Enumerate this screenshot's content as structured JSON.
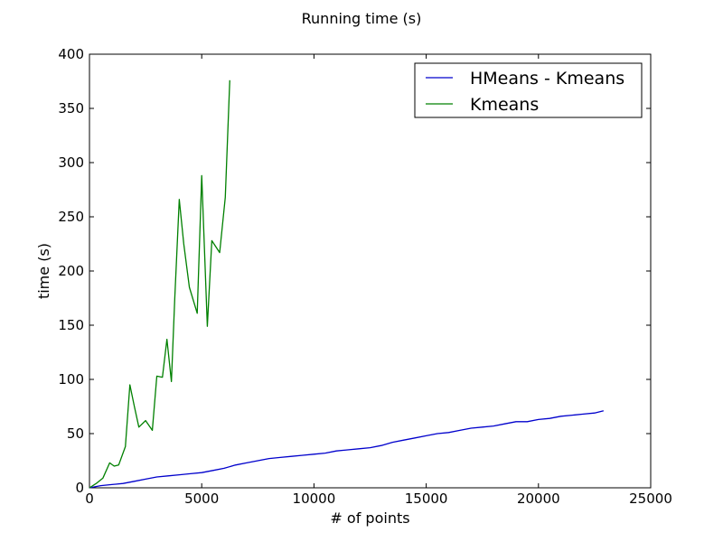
{
  "chart_data": {
    "type": "line",
    "title": "Running time (s)",
    "xlabel": "# of points",
    "ylabel": "time (s)",
    "xlim": [
      0,
      25000
    ],
    "ylim": [
      0,
      400
    ],
    "xticks": [
      0,
      5000,
      10000,
      15000,
      20000,
      25000
    ],
    "yticks": [
      0,
      50,
      100,
      150,
      200,
      250,
      300,
      350,
      400
    ],
    "grid": false,
    "legend_position": "top-right",
    "series": [
      {
        "name": "HMeans - Kmeans",
        "color": "#0000cc",
        "x": [
          0,
          500,
          1000,
          1500,
          2000,
          2500,
          3000,
          3500,
          4000,
          4500,
          5000,
          5500,
          6000,
          6500,
          7000,
          7500,
          8000,
          8500,
          9000,
          9500,
          10000,
          10500,
          11000,
          11500,
          12000,
          12500,
          13000,
          13500,
          14000,
          14500,
          15000,
          15500,
          16000,
          16500,
          17000,
          17500,
          18000,
          18500,
          19000,
          19500,
          20000,
          20500,
          21000,
          21500,
          22000,
          22500,
          22900
        ],
        "y": [
          0,
          2,
          3,
          4,
          6,
          8,
          10,
          11,
          12,
          13,
          14,
          16,
          18,
          21,
          23,
          25,
          27,
          28,
          29,
          30,
          31,
          32,
          34,
          35,
          36,
          37,
          39,
          42,
          44,
          46,
          48,
          50,
          51,
          53,
          55,
          56,
          57,
          59,
          61,
          61,
          63,
          64,
          66,
          67,
          68,
          69,
          71
        ]
      },
      {
        "name": "Kmeans",
        "color": "#008000",
        "x": [
          0,
          300,
          600,
          900,
          1100,
          1300,
          1600,
          1800,
          2000,
          2200,
          2500,
          2800,
          3000,
          3250,
          3450,
          3650,
          3800,
          4000,
          4200,
          4450,
          4800,
          5000,
          5250,
          5450,
          5800,
          6050,
          6250
        ],
        "y": [
          0,
          4,
          9,
          23,
          20,
          21,
          38,
          95,
          75,
          56,
          62,
          53,
          103,
          102,
          137,
          98,
          175,
          266,
          225,
          185,
          161,
          288,
          149,
          228,
          217,
          268,
          376
        ]
      }
    ]
  }
}
